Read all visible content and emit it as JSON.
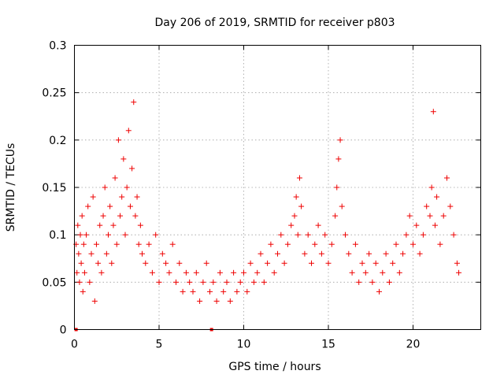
{
  "chart_data": {
    "type": "scatter",
    "title": "Day 206 of 2019, SRMTID for receiver p803",
    "xlabel": "GPS time / hours",
    "ylabel": "SRMTID / TECUs",
    "xlim": [
      0,
      24
    ],
    "ylim": [
      0,
      0.3
    ],
    "xticks": [
      0,
      5,
      10,
      15,
      20
    ],
    "xtick_labels": [
      "0",
      "5",
      "10",
      "15",
      "20"
    ],
    "yticks": [
      0,
      0.05,
      0.1,
      0.15,
      0.2,
      0.25,
      0.3
    ],
    "ytick_labels": [
      "0",
      "0.05",
      "0.1",
      "0.15",
      "0.2",
      "0.25",
      "0.3"
    ],
    "grid": true,
    "marker": "+",
    "color": "#ee0000",
    "series": [
      {
        "name": "SRMTID",
        "x": [
          0.1,
          0.15,
          0.2,
          0.25,
          0.3,
          0.35,
          0.4,
          0.45,
          0.5,
          0.55,
          0.6,
          0.7,
          0.8,
          0.9,
          1.0,
          1.1,
          1.2,
          1.3,
          1.4,
          1.5,
          1.6,
          1.7,
          1.8,
          1.9,
          2.0,
          2.1,
          2.2,
          2.3,
          2.4,
          2.5,
          2.6,
          2.7,
          2.8,
          2.9,
          3.0,
          3.1,
          3.2,
          3.3,
          3.4,
          3.5,
          3.6,
          3.7,
          3.8,
          3.9,
          4.0,
          4.2,
          4.4,
          4.6,
          4.8,
          5.0,
          5.2,
          5.4,
          5.6,
          5.8,
          6.0,
          6.2,
          6.4,
          6.6,
          6.8,
          7.0,
          7.2,
          7.4,
          7.6,
          7.8,
          8.0,
          8.2,
          8.4,
          8.6,
          8.8,
          9.0,
          9.2,
          9.4,
          9.6,
          9.8,
          10.0,
          10.2,
          10.4,
          10.6,
          10.8,
          11.0,
          11.2,
          11.4,
          11.6,
          11.8,
          12.0,
          12.2,
          12.4,
          12.6,
          12.8,
          13.0,
          13.1,
          13.2,
          13.3,
          13.4,
          13.6,
          13.8,
          14.0,
          14.2,
          14.4,
          14.6,
          14.8,
          15.0,
          15.2,
          15.4,
          15.5,
          15.6,
          15.7,
          15.8,
          16.0,
          16.2,
          16.4,
          16.6,
          16.8,
          17.0,
          17.2,
          17.4,
          17.6,
          17.8,
          18.0,
          18.2,
          18.4,
          18.6,
          18.8,
          19.0,
          19.2,
          19.4,
          19.6,
          19.8,
          20.0,
          20.2,
          20.4,
          20.6,
          20.8,
          21.0,
          21.1,
          21.2,
          21.3,
          21.4,
          21.6,
          21.8,
          22.0,
          22.2,
          22.4,
          22.6,
          22.7
        ],
        "y": [
          0.09,
          0.06,
          0.11,
          0.08,
          0.05,
          0.1,
          0.07,
          0.12,
          0.04,
          0.09,
          0.06,
          0.1,
          0.13,
          0.05,
          0.08,
          0.14,
          0.03,
          0.09,
          0.07,
          0.11,
          0.06,
          0.12,
          0.15,
          0.08,
          0.1,
          0.13,
          0.07,
          0.11,
          0.16,
          0.09,
          0.2,
          0.12,
          0.14,
          0.18,
          0.1,
          0.15,
          0.21,
          0.13,
          0.17,
          0.24,
          0.12,
          0.14,
          0.09,
          0.11,
          0.08,
          0.07,
          0.09,
          0.06,
          0.1,
          0.05,
          0.08,
          0.07,
          0.06,
          0.09,
          0.05,
          0.07,
          0.04,
          0.06,
          0.05,
          0.04,
          0.06,
          0.03,
          0.05,
          0.07,
          0.04,
          0.05,
          0.03,
          0.06,
          0.04,
          0.05,
          0.03,
          0.06,
          0.04,
          0.05,
          0.06,
          0.04,
          0.07,
          0.05,
          0.06,
          0.08,
          0.05,
          0.07,
          0.09,
          0.06,
          0.08,
          0.1,
          0.07,
          0.09,
          0.11,
          0.12,
          0.14,
          0.1,
          0.16,
          0.13,
          0.08,
          0.1,
          0.07,
          0.09,
          0.11,
          0.08,
          0.1,
          0.07,
          0.09,
          0.12,
          0.15,
          0.18,
          0.2,
          0.13,
          0.1,
          0.08,
          0.06,
          0.09,
          0.05,
          0.07,
          0.06,
          0.08,
          0.05,
          0.07,
          0.04,
          0.06,
          0.08,
          0.05,
          0.07,
          0.09,
          0.06,
          0.08,
          0.1,
          0.12,
          0.09,
          0.11,
          0.08,
          0.1,
          0.13,
          0.12,
          0.15,
          0.23,
          0.11,
          0.14,
          0.09,
          0.12,
          0.16,
          0.13,
          0.1,
          0.07,
          0.06
        ]
      }
    ],
    "annotations": [
      {
        "x": 0.1,
        "y": 0.0
      },
      {
        "x": 8.1,
        "y": 0.0
      }
    ]
  }
}
